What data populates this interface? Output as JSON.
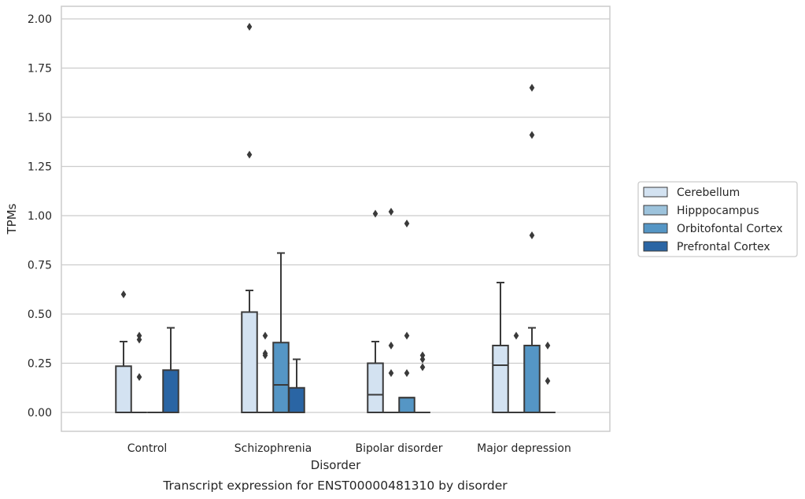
{
  "caption": "Transcript expression for ENST00000481310 by disorder",
  "chart_data": {
    "type": "box",
    "xlabel": "Disorder",
    "ylabel": "TPMs",
    "ylim": [
      -0.1,
      2.06
    ],
    "yticks": [
      0.0,
      0.25,
      0.5,
      0.75,
      1.0,
      1.25,
      1.5,
      1.75,
      2.0
    ],
    "ytick_labels": [
      "0.00",
      "0.25",
      "0.50",
      "0.75",
      "1.00",
      "1.25",
      "1.50",
      "1.75",
      "2.00"
    ],
    "grid": "horizontal",
    "legend_position": "right",
    "categories": [
      "Control",
      "Schizophrenia",
      "Bipolar disorder",
      "Major depression"
    ],
    "series": [
      {
        "name": "Cerebellum",
        "color": "#d3e2f1",
        "boxes": [
          {
            "q1": 0,
            "median": 0,
            "q3": 0.235,
            "whisker_low": 0,
            "whisker_high": 0.36,
            "outliers": [
              0.6
            ]
          },
          {
            "q1": 0,
            "median": 0,
            "q3": 0.51,
            "whisker_low": 0,
            "whisker_high": 0.62,
            "outliers": [
              1.96,
              1.31
            ]
          },
          {
            "q1": 0,
            "median": 0.09,
            "q3": 0.25,
            "whisker_low": 0,
            "whisker_high": 0.36,
            "outliers": [
              1.01
            ]
          },
          {
            "q1": 0,
            "median": 0.24,
            "q3": 0.34,
            "whisker_low": 0,
            "whisker_high": 0.66,
            "outliers": []
          }
        ]
      },
      {
        "name": "Hipppocampus",
        "color": "#9dc3dc",
        "boxes": [
          {
            "q1": 0,
            "median": 0,
            "q3": 0,
            "whisker_low": 0,
            "whisker_high": 0,
            "outliers": [
              0.39,
              0.37,
              0.18
            ]
          },
          {
            "q1": 0,
            "median": 0,
            "q3": 0,
            "whisker_low": 0,
            "whisker_high": 0,
            "outliers": [
              0.39,
              0.3,
              0.29
            ]
          },
          {
            "q1": 0,
            "median": 0,
            "q3": 0,
            "whisker_low": 0,
            "whisker_high": 0,
            "outliers": [
              1.02,
              0.34,
              0.2
            ]
          },
          {
            "q1": 0,
            "median": 0,
            "q3": 0,
            "whisker_low": 0,
            "whisker_high": 0,
            "outliers": [
              0.39
            ]
          }
        ]
      },
      {
        "name": "Orbitofontal Cortex",
        "color": "#5596c5",
        "boxes": [
          {
            "q1": 0,
            "median": 0,
            "q3": 0,
            "whisker_low": 0,
            "whisker_high": 0,
            "outliers": []
          },
          {
            "q1": 0,
            "median": 0.14,
            "q3": 0.355,
            "whisker_low": 0,
            "whisker_high": 0.81,
            "outliers": []
          },
          {
            "q1": 0,
            "median": 0.075,
            "q3": 0.075,
            "whisker_low": 0,
            "whisker_high": 0.075,
            "outliers": [
              0.96,
              0.39,
              0.2
            ]
          },
          {
            "q1": 0,
            "median": 0,
            "q3": 0.34,
            "whisker_low": 0,
            "whisker_high": 0.43,
            "outliers": [
              1.65,
              1.41,
              0.9
            ]
          }
        ]
      },
      {
        "name": "Prefrontal Cortex",
        "color": "#2a65a4",
        "boxes": [
          {
            "q1": 0,
            "median": 0,
            "q3": 0.215,
            "whisker_low": 0,
            "whisker_high": 0.43,
            "outliers": []
          },
          {
            "q1": 0,
            "median": 0,
            "q3": 0.125,
            "whisker_low": 0,
            "whisker_high": 0.27,
            "outliers": []
          },
          {
            "q1": 0,
            "median": 0,
            "q3": 0,
            "whisker_low": 0,
            "whisker_high": 0,
            "outliers": [
              0.29,
              0.27,
              0.23
            ]
          },
          {
            "q1": 0,
            "median": 0,
            "q3": 0,
            "whisker_low": 0,
            "whisker_high": 0,
            "outliers": [
              0.34,
              0.16
            ]
          }
        ]
      }
    ],
    "line_color": "#3a3a3a",
    "grid_color": "#cccccc",
    "frame_color": "#cccccc"
  }
}
